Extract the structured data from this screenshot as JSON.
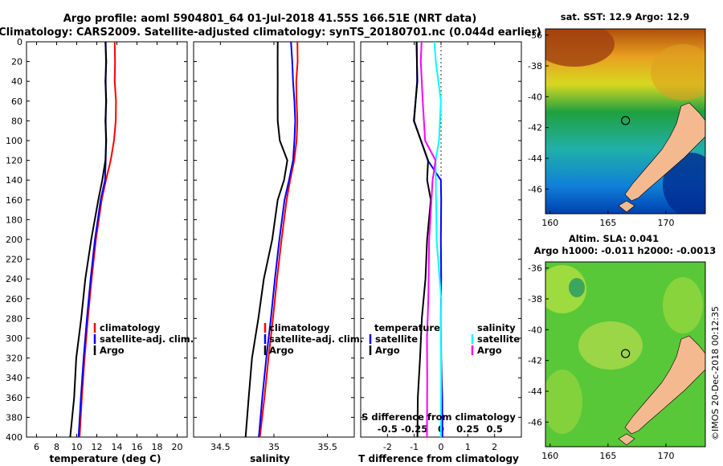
{
  "title_line1": "Argo profile: aoml 5904801_64 01-Jul-2018 41.55S 166.51E (NRT data)",
  "title_line2": "Climatology: CARS2009. Satellite-adjusted climatology: synTS_20180701.nc (0.044d earlier)",
  "credit": "©IMOS 20-Dec-2018 00:12:35",
  "colors": {
    "climatology": "#ff0000",
    "satellite": "#0000ff",
    "argo": "#000000",
    "sat_salinity": "#00ffff",
    "argo_salinity": "#ff00ff",
    "land": "#f5b990"
  },
  "chart_data": [
    {
      "type": "line",
      "id": "temperature",
      "xlabel": "temperature (deg C)",
      "ylabel": "depth",
      "xlim": [
        5,
        21
      ],
      "ylim": [
        400,
        0
      ],
      "x_ticks": [
        6,
        8,
        10,
        12,
        14,
        16,
        18,
        20
      ],
      "y_ticks": [
        0,
        20,
        40,
        60,
        80,
        100,
        120,
        140,
        160,
        180,
        200,
        220,
        240,
        260,
        280,
        300,
        320,
        340,
        360,
        380,
        400
      ],
      "legend": [
        "climatology",
        "satellite-adj. clim.",
        "Argo"
      ],
      "series": [
        {
          "name": "climatology",
          "color": "red",
          "depth": [
            0,
            20,
            40,
            60,
            80,
            100,
            120,
            140,
            160,
            200,
            240,
            280,
            320,
            360,
            400
          ],
          "values": [
            13.8,
            13.8,
            13.8,
            13.9,
            13.9,
            13.7,
            13.4,
            12.9,
            12.5,
            11.9,
            11.5,
            11.1,
            10.8,
            10.5,
            10.3
          ]
        },
        {
          "name": "satellite",
          "color": "blue",
          "depth": [
            0,
            20,
            40,
            60,
            80,
            100,
            120,
            140,
            160,
            200,
            240,
            280,
            320,
            360,
            400
          ],
          "values": [
            12.9,
            12.9,
            12.9,
            12.9,
            12.9,
            12.9,
            12.9,
            12.8,
            12.4,
            11.8,
            11.4,
            11.0,
            10.7,
            10.4,
            10.2
          ]
        },
        {
          "name": "Argo",
          "color": "black",
          "depth": [
            0,
            20,
            40,
            60,
            80,
            100,
            120,
            140,
            160,
            200,
            240,
            280,
            320,
            360,
            400
          ],
          "values": [
            12.9,
            12.9,
            12.9,
            12.9,
            12.9,
            12.9,
            12.9,
            12.5,
            12.2,
            11.4,
            10.9,
            10.4,
            10.0,
            9.7,
            9.4
          ]
        }
      ]
    },
    {
      "type": "line",
      "id": "salinity",
      "xlabel": "salinity",
      "xlim": [
        34.25,
        35.75
      ],
      "ylim": [
        400,
        0
      ],
      "x_ticks": [
        34.5,
        35,
        35.5
      ],
      "x_tick_labels": [
        "34.5",
        "35",
        "35.5"
      ],
      "y_ticks": [
        0,
        20,
        40,
        60,
        80,
        100,
        120,
        140,
        160,
        180,
        200,
        220,
        240,
        260,
        280,
        300,
        320,
        340,
        360,
        380,
        400
      ],
      "legend": [
        "climatology",
        "satellite-adj. clim.",
        "Argo"
      ],
      "series": [
        {
          "name": "climatology",
          "color": "red",
          "depth": [
            0,
            20,
            40,
            60,
            80,
            100,
            120,
            140,
            160,
            200,
            240,
            280,
            320,
            360,
            400
          ],
          "values": [
            35.22,
            35.22,
            35.21,
            35.21,
            35.22,
            35.21,
            35.19,
            35.15,
            35.12,
            35.07,
            35.03,
            34.99,
            34.95,
            34.91,
            34.87
          ]
        },
        {
          "name": "satellite",
          "color": "blue",
          "depth": [
            0,
            20,
            40,
            60,
            80,
            100,
            120,
            140,
            160,
            200,
            240,
            280,
            320,
            360,
            400
          ],
          "values": [
            35.16,
            35.17,
            35.18,
            35.19,
            35.2,
            35.19,
            35.18,
            35.14,
            35.1,
            35.05,
            35.01,
            34.97,
            34.93,
            34.89,
            34.86
          ]
        },
        {
          "name": "Argo",
          "color": "black",
          "depth": [
            0,
            20,
            40,
            60,
            80,
            100,
            120,
            140,
            160,
            200,
            240,
            280,
            320,
            360,
            400
          ],
          "values": [
            35.04,
            35.03,
            35.04,
            35.03,
            35.04,
            35.05,
            35.13,
            35.09,
            35.04,
            34.98,
            34.91,
            34.85,
            34.8,
            34.76,
            34.74
          ]
        }
      ]
    },
    {
      "type": "line",
      "id": "difference",
      "xlabel": "T difference from climatology",
      "xlabel_top": "S difference from climatology",
      "xlim": [
        -3,
        3
      ],
      "ylim": [
        400,
        0
      ],
      "x_ticks": [
        -2,
        -1,
        0,
        1,
        2
      ],
      "x_tick_labels": [
        "-2",
        "-1",
        "0",
        "1",
        "2"
      ],
      "s_ticks": [
        -0.5,
        -0.25,
        0,
        0.25,
        0.5
      ],
      "s_tick_labels": [
        "-0.5",
        "-0.25",
        "0",
        "0.25",
        "0.5"
      ],
      "y_ticks": [
        0,
        20,
        40,
        60,
        80,
        100,
        120,
        140,
        160,
        180,
        200,
        220,
        240,
        260,
        280,
        300,
        320,
        340,
        360,
        380,
        400
      ],
      "legend_temperature_title": "temperature",
      "legend_salinity_title": "salinity",
      "legend_temperature": [
        "satellite",
        "Argo"
      ],
      "legend_salinity": [
        "satellite",
        "Argo"
      ],
      "series": [
        {
          "name": "T satellite",
          "color": "blue",
          "depth": [
            0,
            40,
            80,
            120,
            140,
            160,
            200,
            240,
            280,
            320,
            360,
            400
          ],
          "values": [
            -0.9,
            -0.9,
            -1.0,
            -0.5,
            0.0,
            0.0,
            0.0,
            0.0,
            0.0,
            0.0,
            0.05,
            0.05
          ]
        },
        {
          "name": "T Argo",
          "color": "black",
          "depth": [
            0,
            40,
            80,
            120,
            140,
            160,
            200,
            240,
            280,
            320,
            360,
            400
          ],
          "values": [
            -0.9,
            -0.9,
            -1.0,
            -0.5,
            -0.5,
            -0.4,
            -0.5,
            -0.6,
            -0.7,
            -0.8,
            -0.85,
            -0.9
          ]
        },
        {
          "name": "S satellite",
          "color": "cyan",
          "depth": [
            0,
            20,
            60,
            100,
            120,
            140,
            200,
            260,
            300,
            340,
            400
          ],
          "values": [
            -0.06,
            -0.05,
            0.0,
            -0.02,
            -0.05,
            -0.05,
            -0.04,
            0.0,
            0.0,
            0.0,
            0.0
          ]
        },
        {
          "name": "S Argo",
          "color": "magenta",
          "depth": [
            0,
            20,
            60,
            100,
            120,
            140,
            200,
            260,
            300,
            340,
            400
          ],
          "values": [
            -0.18,
            -0.19,
            -0.17,
            -0.15,
            -0.05,
            -0.08,
            -0.11,
            -0.12,
            -0.13,
            -0.13,
            -0.13
          ]
        }
      ]
    },
    {
      "type": "heatmap",
      "id": "sst-map",
      "title": "sat. SST: 12.9 Argo: 12.9",
      "x_ticks": [
        160,
        165,
        170
      ],
      "y_ticks": [
        -36,
        -38,
        -40,
        -42,
        -44,
        -46
      ],
      "xlim": [
        159.6,
        173.4
      ],
      "ylim": [
        -47.6,
        -35.6
      ],
      "argo_position": [
        166.51,
        -41.55
      ]
    },
    {
      "type": "heatmap",
      "id": "sla-map",
      "title": "Altim. SLA: 0.041",
      "subtitle": "Argo h1000: -0.011 h2000: -0.0013",
      "x_ticks": [
        160,
        165,
        170
      ],
      "y_ticks": [
        -36,
        -38,
        -40,
        -42,
        -44,
        -46
      ],
      "xlim": [
        159.6,
        173.4
      ],
      "ylim": [
        -47.6,
        -35.6
      ],
      "argo_position": [
        166.51,
        -41.55
      ]
    }
  ]
}
